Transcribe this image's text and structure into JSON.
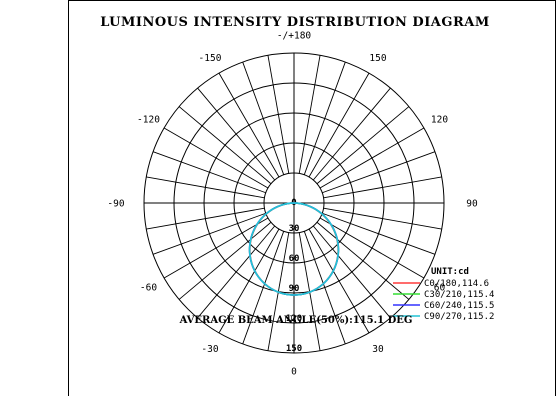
{
  "chart_data": {
    "type": "polar",
    "title": "LUMINOUS INTENSITY DISTRIBUTION DIAGRAM",
    "angle_labels": [
      {
        "angle": 0,
        "label": "-/+180"
      },
      {
        "angle": 30,
        "label": "150"
      },
      {
        "angle": 60,
        "label": "120"
      },
      {
        "angle": 90,
        "label": "90"
      },
      {
        "angle": 120,
        "label": "60"
      },
      {
        "angle": 150,
        "label": "30"
      },
      {
        "angle": 180,
        "label": "0"
      },
      {
        "angle": 210,
        "label": "-30"
      },
      {
        "angle": 240,
        "label": "-60"
      },
      {
        "angle": 270,
        "label": "-90"
      },
      {
        "angle": 300,
        "label": "-120"
      },
      {
        "angle": 330,
        "label": "-150"
      }
    ],
    "radial_labels": [
      "0",
      "30",
      "60",
      "90",
      "120",
      "150"
    ],
    "radial_max": 150,
    "unit": "UNIT:cd",
    "series": [
      {
        "name": "C0/180,114.6",
        "color": "#ff3b3b",
        "beam_angle": 114.6,
        "peak": 92
      },
      {
        "name": "C30/210,115.4",
        "color": "#33dd33",
        "beam_angle": 115.4,
        "peak": 92
      },
      {
        "name": "C60/240,115.5",
        "color": "#3333ff",
        "beam_angle": 115.5,
        "peak": 92
      },
      {
        "name": "C90/270,115.2",
        "color": "#22c4d6",
        "beam_angle": 115.2,
        "peak": 92
      }
    ],
    "footer": "AVERAGE BEAM ANGLE(50%):115.1 DEG"
  }
}
